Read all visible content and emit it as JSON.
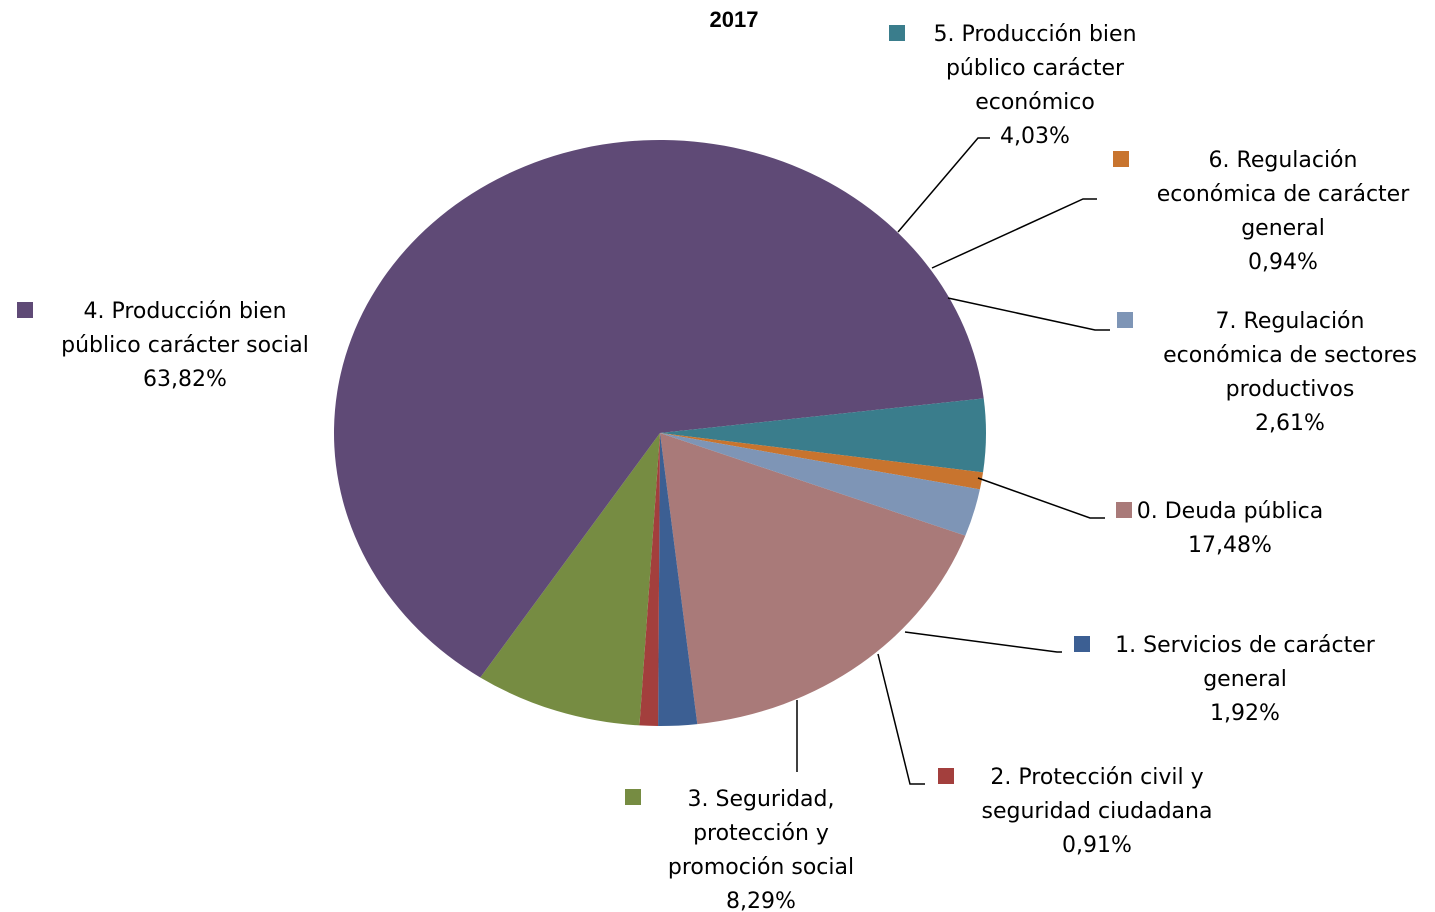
{
  "chart_data": {
    "type": "pie",
    "title": "2017",
    "slices": [
      {
        "name": "0. Deuda pública",
        "label_lines": [
          "0. Deuda pública"
        ],
        "value_label": "17,48%",
        "value": 17.48,
        "color": "#A97A79"
      },
      {
        "name": "1. Servicios de carácter general",
        "label_lines": [
          "1. Servicios de carácter",
          "general"
        ],
        "value_label": "1,92%",
        "value": 1.92,
        "color": "#3C5F93"
      },
      {
        "name": "2. Protección civil y seguridad ciudadana",
        "label_lines": [
          "2. Protección civil y",
          "seguridad ciudadana"
        ],
        "value_label": "0,91%",
        "value": 0.91,
        "color": "#A33F3D"
      },
      {
        "name": "3. Seguridad, protección y promoción social",
        "label_lines": [
          "3. Seguridad,",
          "protección y",
          "promoción social"
        ],
        "value_label": "8,29%",
        "value": 8.29,
        "color": "#768C42"
      },
      {
        "name": "4. Producción bien público carácter social",
        "label_lines": [
          "4. Producción bien",
          "público carácter social"
        ],
        "value_label": "63,82%",
        "value": 63.82,
        "color": "#5F4A76"
      },
      {
        "name": "5. Producción bien público carácter económico",
        "label_lines": [
          "5. Producción bien",
          "público carácter",
          "económico"
        ],
        "value_label": "4,03%",
        "value": 4.03,
        "color": "#3A7D8C"
      },
      {
        "name": "6. Regulación económica de carácter general",
        "label_lines": [
          "6. Regulación",
          "económica de carácter",
          "general"
        ],
        "value_label": "0,94%",
        "value": 0.94,
        "color": "#C8742E"
      },
      {
        "name": "7. Regulación económica de sectores productivos",
        "label_lines": [
          "7. Regulación",
          "económica de sectores",
          "productivos"
        ],
        "value_label": "2,61%",
        "value": 2.61,
        "color": "#7E95B6"
      }
    ]
  }
}
